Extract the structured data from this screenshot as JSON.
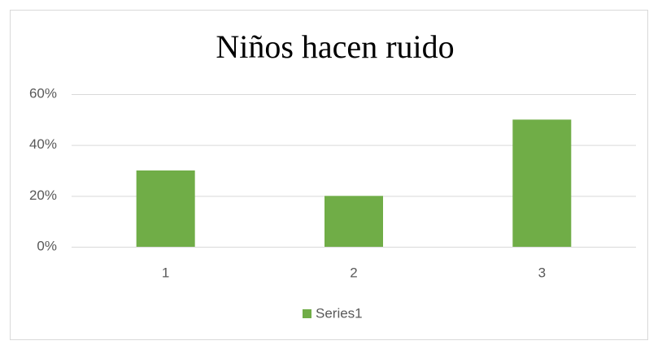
{
  "chart_data": {
    "type": "bar",
    "title": "Niños hacen ruido",
    "categories": [
      "1",
      "2",
      "3"
    ],
    "series": [
      {
        "name": "Series1",
        "color": "#70ad47",
        "values": [
          30,
          20,
          50
        ]
      }
    ],
    "ylim": [
      0,
      60
    ],
    "yticks": [
      {
        "value": 0,
        "label": "0%"
      },
      {
        "value": 20,
        "label": "20%"
      },
      {
        "value": 40,
        "label": "40%"
      },
      {
        "value": 60,
        "label": "60%"
      }
    ],
    "grid": true,
    "legend": "bottom"
  }
}
